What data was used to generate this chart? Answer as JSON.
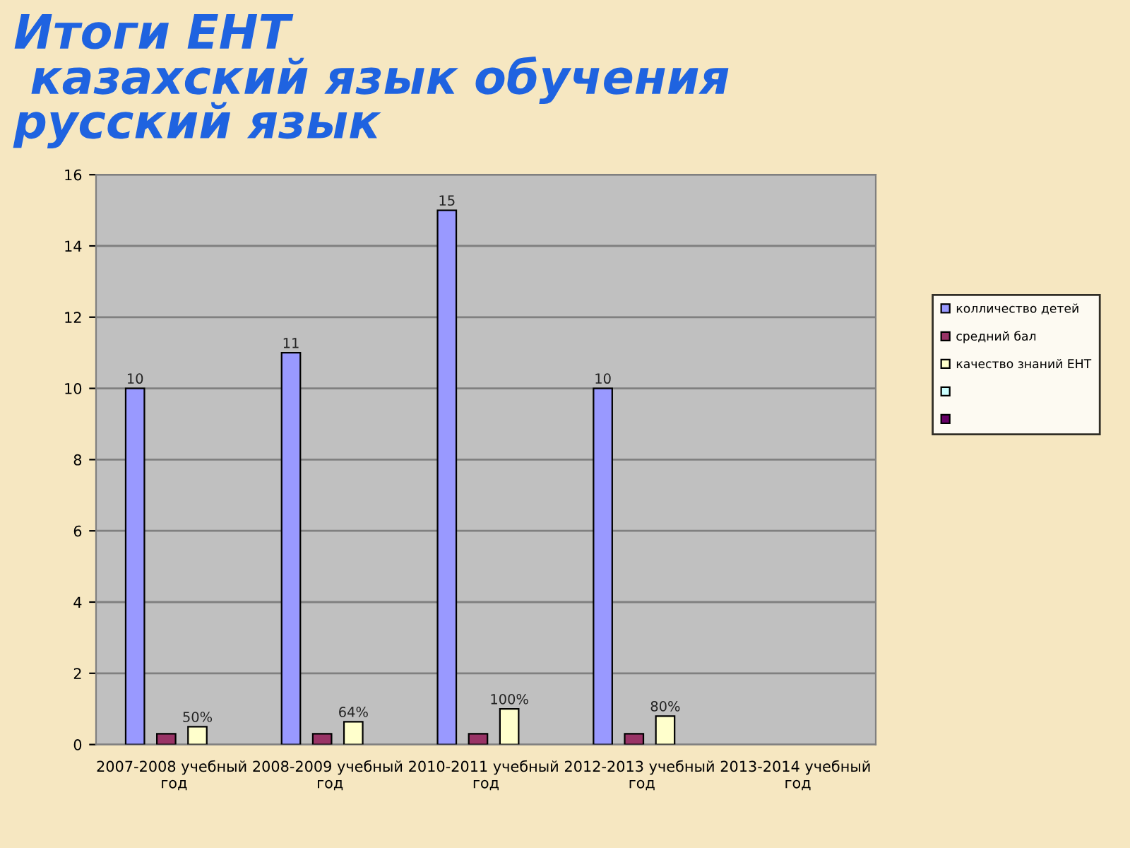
{
  "chart_data": {
    "type": "bar",
    "title": "Итоги ЕНТ\n казахский язык обучения\nрусский язык",
    "categories": [
      "2007-2008 учебный год",
      "2008-2009 учебный год",
      "2010-2011 учебный год",
      "2012-2013 учебный год",
      "2013-2014 учебный год"
    ],
    "series": [
      {
        "name": "колличество детей",
        "color": "#9999ff",
        "values": [
          10,
          11,
          15,
          10,
          null
        ],
        "value_labels": [
          "10",
          "11",
          "15",
          "10",
          null
        ]
      },
      {
        "name": "средний бал",
        "color": "#993366",
        "values": [
          0.3,
          0.3,
          0.3,
          0.3,
          null
        ]
      },
      {
        "name": "качество знаний ЕНТ",
        "color": "#ffffcc",
        "values": [
          0.5,
          0.64,
          1.0,
          0.8,
          null
        ],
        "value_labels": [
          "50%",
          "64%",
          "100%",
          "80%",
          null
        ]
      },
      {
        "color": "#ccffff",
        "values": [
          null,
          null,
          null,
          null,
          null
        ]
      },
      {
        "color": "#660066",
        "values": [
          null,
          null,
          null,
          null,
          null
        ]
      }
    ],
    "ylim": [
      0,
      16
    ],
    "yticks": [
      0,
      2,
      4,
      6,
      8,
      10,
      12,
      14,
      16
    ],
    "grid": "y",
    "legend": "right"
  }
}
